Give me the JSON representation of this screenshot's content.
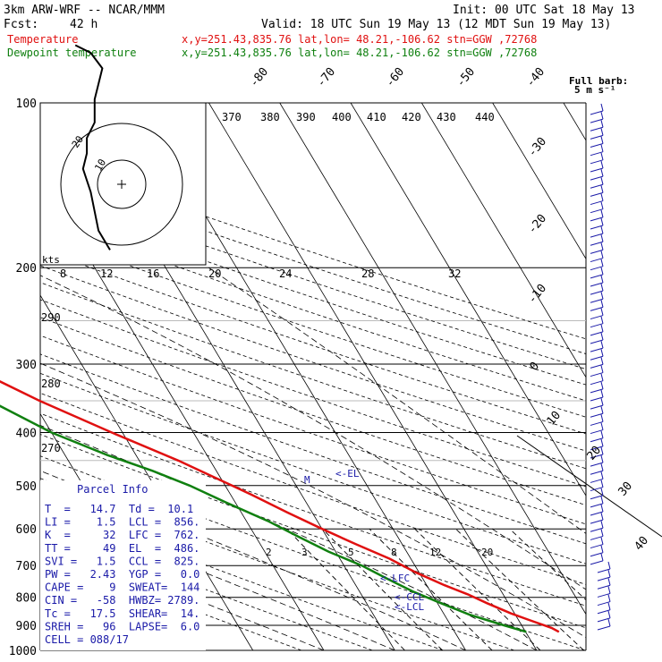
{
  "header": {
    "model": "3km ARW-WRF -- NCAR/MMM",
    "init": "Init: 00 UTC Sat 18 May 13",
    "fcst_label": "Fcst:",
    "fcst_value": "42 h",
    "valid": "Valid: 18 UTC Sun 19 May 13 (12 MDT Sun 19 May 13)"
  },
  "legend": [
    {
      "name": "Temperature",
      "info": "x,y=251.43,835.76   lat,lon= 48.21,-106.62  stn=GGW ,72768",
      "color": "#e01010"
    },
    {
      "name": "Dewpoint temperature",
      "info": "x,y=251.43,835.76   lat,lon= 48.21,-106.62  stn=GGW ,72768",
      "color": "#108010"
    }
  ],
  "barb_key": {
    "line1": "Full barb:",
    "line2": "5 m s⁻¹"
  },
  "parcel_info": {
    "title": "Parcel Info",
    "rows": [
      "T  =   14.7  Td =  10.1",
      "LI =    1.5  LCL =  856.",
      "K  =     32  LFC =  762.",
      "TT =     49  EL  =  486.",
      "SVI =   1.5  CCL =  825.",
      "PW =   2.43  YGP =   0.0",
      "CAPE =    9  SWEAT=  144",
      "CIN =   -58  HWBZ= 2789.",
      "Tc =   17.5  SHEAR=  14.",
      "SREH =   96  LAPSE=  6.0",
      "CELL = 088/17"
    ]
  },
  "hodograph": {
    "units": "kts",
    "ring_labels": [
      "10",
      "20"
    ],
    "points_kts": [
      [
        -3,
        -17
      ],
      [
        -6,
        -12
      ],
      [
        -8,
        -2
      ],
      [
        -10,
        4
      ],
      [
        -9,
        8
      ],
      [
        -9,
        12
      ],
      [
        -7,
        16
      ],
      [
        -7,
        22
      ],
      [
        -6,
        26
      ],
      [
        -5,
        30
      ],
      [
        -8,
        34
      ],
      [
        -12,
        36
      ]
    ]
  },
  "markers": [
    "<-EL",
    "<-LFC",
    "<-CCL",
    "<-LCL"
  ],
  "chart_data": {
    "type": "skew-t",
    "title": "",
    "xlabel": "",
    "ylabel": "",
    "pressure_levels": [
      100,
      200,
      300,
      400,
      500,
      600,
      700,
      800,
      900,
      1000
    ],
    "skew_temp_labels": [
      "-80",
      "-70",
      "-60",
      "-50",
      "-40",
      "-30",
      "-20",
      "-10",
      "0",
      "10",
      "20",
      "30",
      "40"
    ],
    "theta_labels_top": [
      "370",
      "380",
      "390",
      "400",
      "410",
      "420",
      "430",
      "440"
    ],
    "theta_labels_left": [
      "290",
      "280",
      "270"
    ],
    "theta_labels_200": [
      "8",
      "12",
      "16",
      "20",
      "24",
      "28",
      "32"
    ],
    "mixing_ratio_labels": [
      "2",
      "3",
      "5",
      "8",
      "12",
      "20"
    ],
    "temperature_profile": [
      {
        "p": 925,
        "t": 14.7
      },
      {
        "p": 910,
        "t": 14.0
      },
      {
        "p": 880,
        "t": 11.5
      },
      {
        "p": 856,
        "t": 9.5
      },
      {
        "p": 820,
        "t": 7.0
      },
      {
        "p": 790,
        "t": 5.0
      },
      {
        "p": 760,
        "t": 2.5
      },
      {
        "p": 720,
        "t": -0.5
      },
      {
        "p": 680,
        "t": -3.0
      },
      {
        "p": 640,
        "t": -6.5
      },
      {
        "p": 600,
        "t": -10.0
      },
      {
        "p": 560,
        "t": -13.5
      },
      {
        "p": 520,
        "t": -17.0
      },
      {
        "p": 486,
        "t": -20.5
      },
      {
        "p": 450,
        "t": -24.5
      },
      {
        "p": 400,
        "t": -31.5
      },
      {
        "p": 350,
        "t": -39.0
      },
      {
        "p": 300,
        "t": -46.5
      },
      {
        "p": 270,
        "t": -52.0
      },
      {
        "p": 250,
        "t": -56.5
      },
      {
        "p": 230,
        "t": -57.5
      },
      {
        "p": 215,
        "t": -57.0
      },
      {
        "p": 200,
        "t": -57.5
      },
      {
        "p": 180,
        "t": -59.0
      },
      {
        "p": 160,
        "t": -60.0
      },
      {
        "p": 140,
        "t": -62.0
      },
      {
        "p": 120,
        "t": -64.5
      },
      {
        "p": 110,
        "t": -65.5
      },
      {
        "p": 100,
        "t": -66.0
      }
    ],
    "dewpoint_profile": [
      {
        "p": 925,
        "t": 10.1
      },
      {
        "p": 900,
        "t": 7.5
      },
      {
        "p": 880,
        "t": 5.5
      },
      {
        "p": 860,
        "t": 3.5
      },
      {
        "p": 820,
        "t": 0.5
      },
      {
        "p": 780,
        "t": -2.5
      },
      {
        "p": 740,
        "t": -5.0
      },
      {
        "p": 700,
        "t": -7.5
      },
      {
        "p": 660,
        "t": -11.0
      },
      {
        "p": 620,
        "t": -14.0
      },
      {
        "p": 580,
        "t": -17.0
      },
      {
        "p": 540,
        "t": -21.0
      },
      {
        "p": 500,
        "t": -25.0
      },
      {
        "p": 470,
        "t": -29.0
      },
      {
        "p": 440,
        "t": -34.0
      },
      {
        "p": 400,
        "t": -40.0
      },
      {
        "p": 350,
        "t": -46.0
      },
      {
        "p": 300,
        "t": -54.0
      },
      {
        "p": 260,
        "t": -62.0
      },
      {
        "p": 240,
        "t": -66.0
      },
      {
        "p": 220,
        "t": -69.0
      },
      {
        "p": 200,
        "t": -73.0
      },
      {
        "p": 185,
        "t": -79.0
      },
      {
        "p": 170,
        "t": -85.0
      },
      {
        "p": 155,
        "t": -86.0
      },
      {
        "p": 140,
        "t": -83.0
      },
      {
        "p": 130,
        "t": -78.0
      },
      {
        "p": 120,
        "t": -74.0
      },
      {
        "p": 110,
        "t": -73.0
      },
      {
        "p": 100,
        "t": -71.0
      }
    ]
  }
}
